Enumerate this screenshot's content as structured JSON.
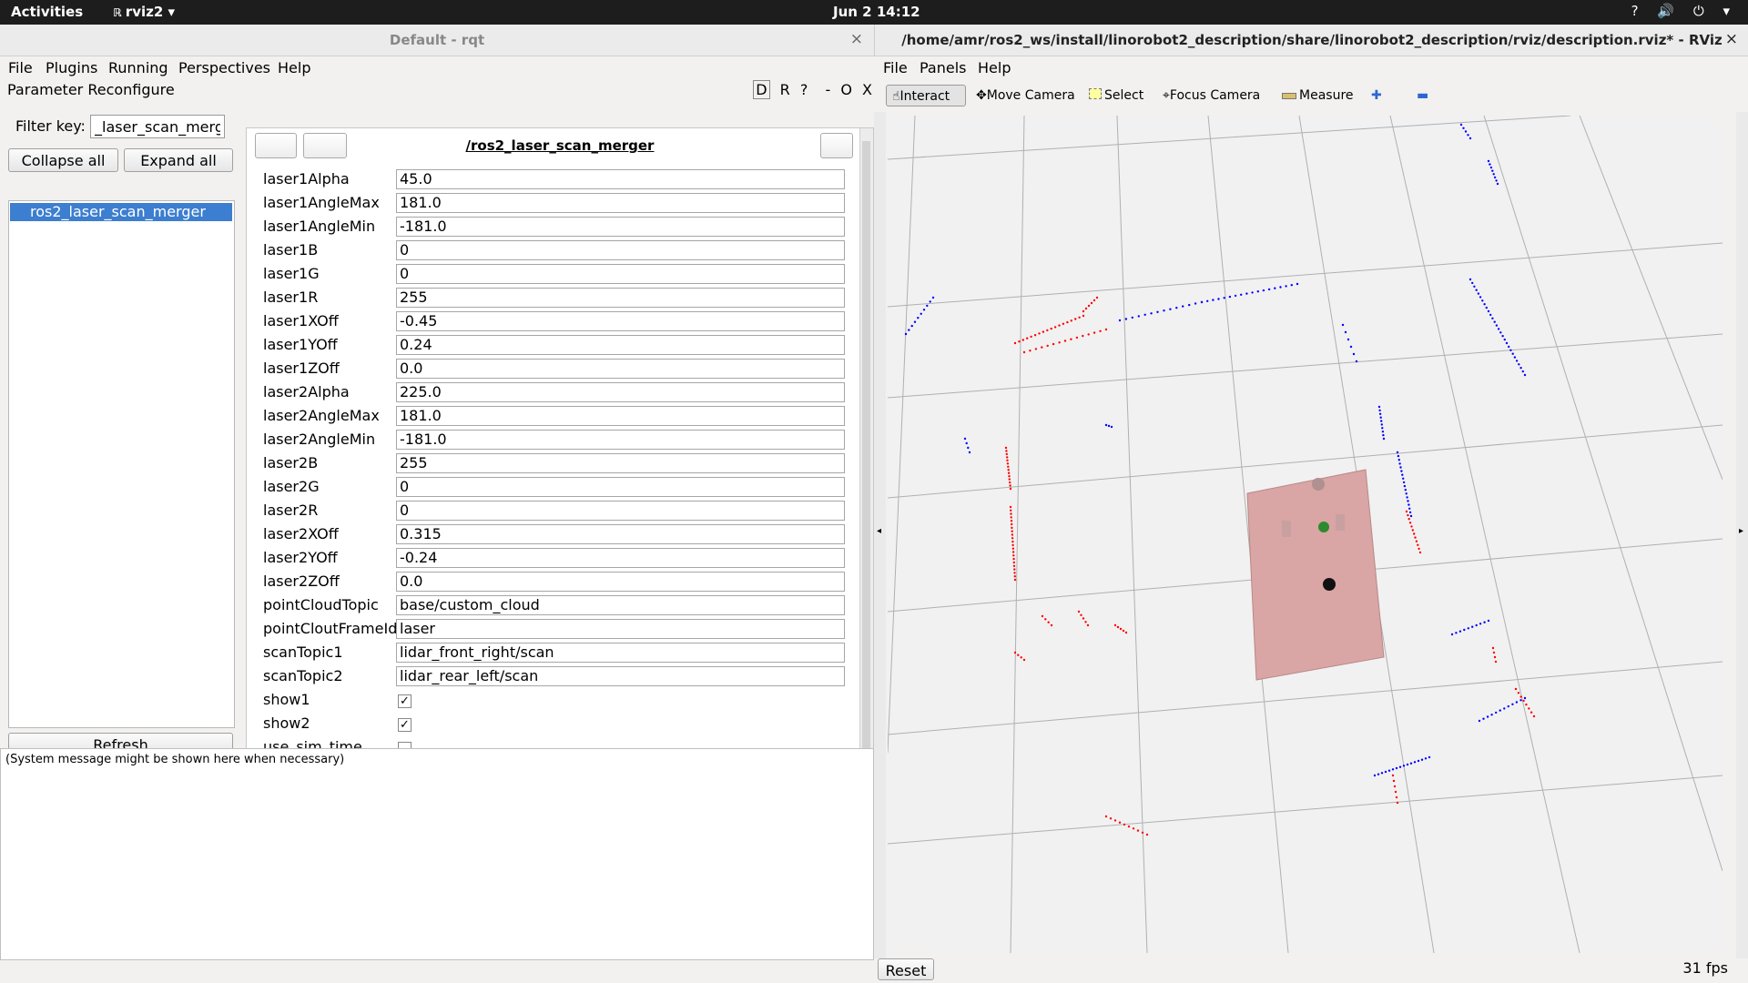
{
  "topbar": {
    "activities": "Activities",
    "app": "rviz2 ▾",
    "app_icon": "rviz-icon",
    "clock": "Jun 2  14:12",
    "tray": "? 🔊 ⏻ ▾"
  },
  "rqt": {
    "title": "Default - rqt",
    "menu": [
      "File",
      "Plugins",
      "Running",
      "Perspectives",
      "Help"
    ],
    "plugin_title": "Parameter Reconfigure",
    "dock_controls": [
      "D",
      "R",
      "?",
      "-",
      "O",
      "X"
    ],
    "filter_label": "Filter key:",
    "filter_value": "_laser_scan_merger",
    "collapse_label": "Collapse all",
    "expand_label": "Expand all",
    "tree_selected": "ros2_laser_scan_merger",
    "refresh_label": "Refresh",
    "node_title": "/ros2_laser_scan_merger",
    "params": [
      {
        "name": "laser1Alpha",
        "value": "45.0"
      },
      {
        "name": "laser1AngleMax",
        "value": "181.0"
      },
      {
        "name": "laser1AngleMin",
        "value": "-181.0"
      },
      {
        "name": "laser1B",
        "value": "0"
      },
      {
        "name": "laser1G",
        "value": "0"
      },
      {
        "name": "laser1R",
        "value": "255"
      },
      {
        "name": "laser1XOff",
        "value": "-0.45"
      },
      {
        "name": "laser1YOff",
        "value": "0.24"
      },
      {
        "name": "laser1ZOff",
        "value": "0.0"
      },
      {
        "name": "laser2Alpha",
        "value": "225.0"
      },
      {
        "name": "laser2AngleMax",
        "value": "181.0"
      },
      {
        "name": "laser2AngleMin",
        "value": "-181.0"
      },
      {
        "name": "laser2B",
        "value": "255"
      },
      {
        "name": "laser2G",
        "value": "0"
      },
      {
        "name": "laser2R",
        "value": "0"
      },
      {
        "name": "laser2XOff",
        "value": "0.315"
      },
      {
        "name": "laser2YOff",
        "value": "-0.24"
      },
      {
        "name": "laser2ZOff",
        "value": "0.0"
      },
      {
        "name": "pointCloudTopic",
        "value": "base/custom_cloud"
      },
      {
        "name": "pointCloutFrameId",
        "value": "laser"
      },
      {
        "name": "scanTopic1",
        "value": "lidar_front_right/scan"
      },
      {
        "name": "scanTopic2",
        "value": "lidar_rear_left/scan"
      }
    ],
    "bools": [
      {
        "name": "show1",
        "checked": true
      },
      {
        "name": "show2",
        "checked": true
      },
      {
        "name": "use_sim_time",
        "checked": false
      }
    ],
    "system_message": "(System message might be shown here when necessary)"
  },
  "rviz": {
    "title": "/home/amr/ros2_ws/install/linorobot2_description/share/linorobot2_description/rviz/description.rviz* - RViz",
    "menu": [
      "File",
      "Panels",
      "Help"
    ],
    "tools": [
      "Interact",
      "Move Camera",
      "Select",
      "Focus Camera",
      "Measure"
    ],
    "reset_label": "Reset",
    "fps": "31 fps",
    "colors": {
      "laser1": "#ff0000",
      "laser2": "#0000ff",
      "robot_base": "#d9a5a5",
      "grid": "#a0a0a0"
    }
  }
}
